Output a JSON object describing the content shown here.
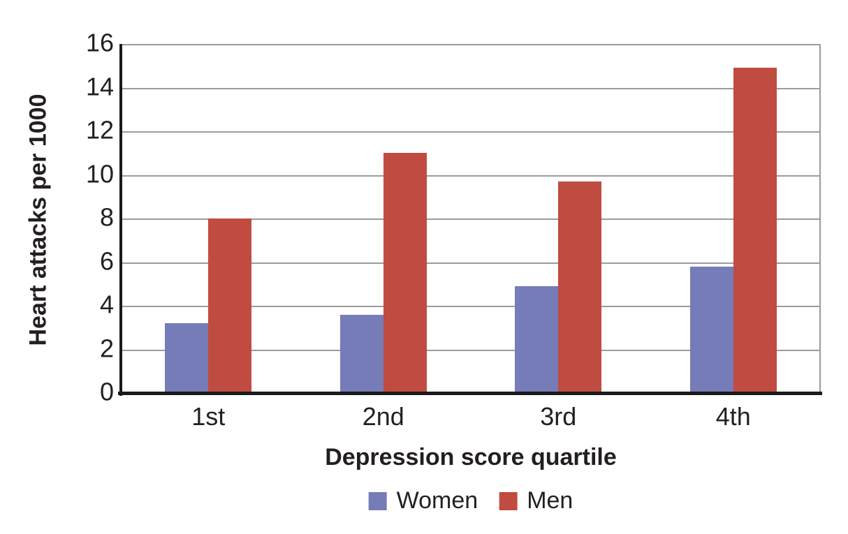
{
  "chart_data": {
    "type": "bar",
    "title": "",
    "categories": [
      "1st",
      "2nd",
      "3rd",
      "4th"
    ],
    "series": [
      {
        "name": "Women",
        "color": "#767CB8",
        "values": [
          3.2,
          3.6,
          4.9,
          5.8
        ]
      },
      {
        "name": "Men",
        "color": "#C04B41",
        "values": [
          8.0,
          11.0,
          9.7,
          14.9
        ]
      }
    ],
    "xlabel": "Depression score quartile",
    "ylabel": "Heart attacks per 1000",
    "ylim": [
      0,
      16
    ],
    "ytick_step": 2,
    "yticks": [
      0,
      2,
      4,
      6,
      8,
      10,
      12,
      14,
      16
    ],
    "grid": true,
    "legend_position": "bottom",
    "colors": {
      "gridline": "#9B9B9B",
      "axis": "#1A1A1A",
      "text": "#231F20",
      "background": "#FFFFFF"
    }
  }
}
